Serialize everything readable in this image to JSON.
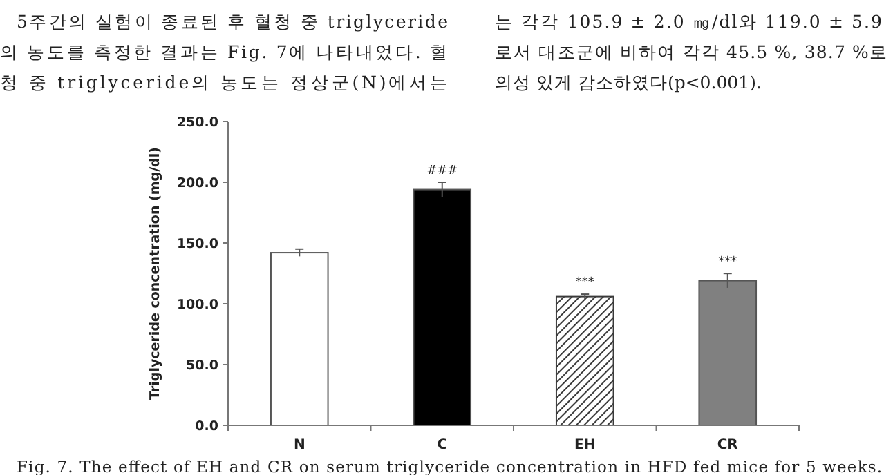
{
  "chart_data": {
    "type": "bar",
    "ylabel": "Triglyceride concentration (mg/dl)",
    "categories": [
      "N",
      "C",
      "EH",
      "CR"
    ],
    "values": [
      142,
      194,
      105.9,
      119.0
    ],
    "errors": [
      3,
      6,
      2.0,
      5.9
    ],
    "colors": [
      "#ffffff",
      "#000000",
      "#3a3a3a",
      "#808080"
    ],
    "ylim": [
      0,
      250
    ],
    "yticks": [
      {
        "value": 0,
        "label": "0.0"
      },
      {
        "value": 50,
        "label": "50.0"
      },
      {
        "value": 100,
        "label": "100.0"
      },
      {
        "value": 150,
        "label": "150.0"
      },
      {
        "value": 200,
        "label": "200.0"
      },
      {
        "value": 250,
        "label": "250.0"
      }
    ],
    "grid": false,
    "annotations": [
      {
        "text": "###",
        "x": "C",
        "y": 200
      },
      {
        "text": "***",
        "x": "EH",
        "y": 107.9
      },
      {
        "text": "***",
        "x": "CR",
        "y": 124.9
      },
      "5주간의 실험이 종료된 후 혈청 중 triglyceride",
      "의 농도를 측정한 결과는 Fig. 7에 나타내었다. 혈",
      "청 중 triglyceride의 농도는 정상군(N)에서는",
      "는 각각 105.9 ± 2.0 ㎎/dl와 119.0 ± 5.9",
      "로서 대조군에 비하여 각각 45.5 %, 38.7 %로",
      "의성 있게 감소하였다(p<0.001).",
      "Fig. 7. The effect of EH and CR on serum triglyceride concentration in HFD fed mice for 5 weeks."
    ]
  }
}
